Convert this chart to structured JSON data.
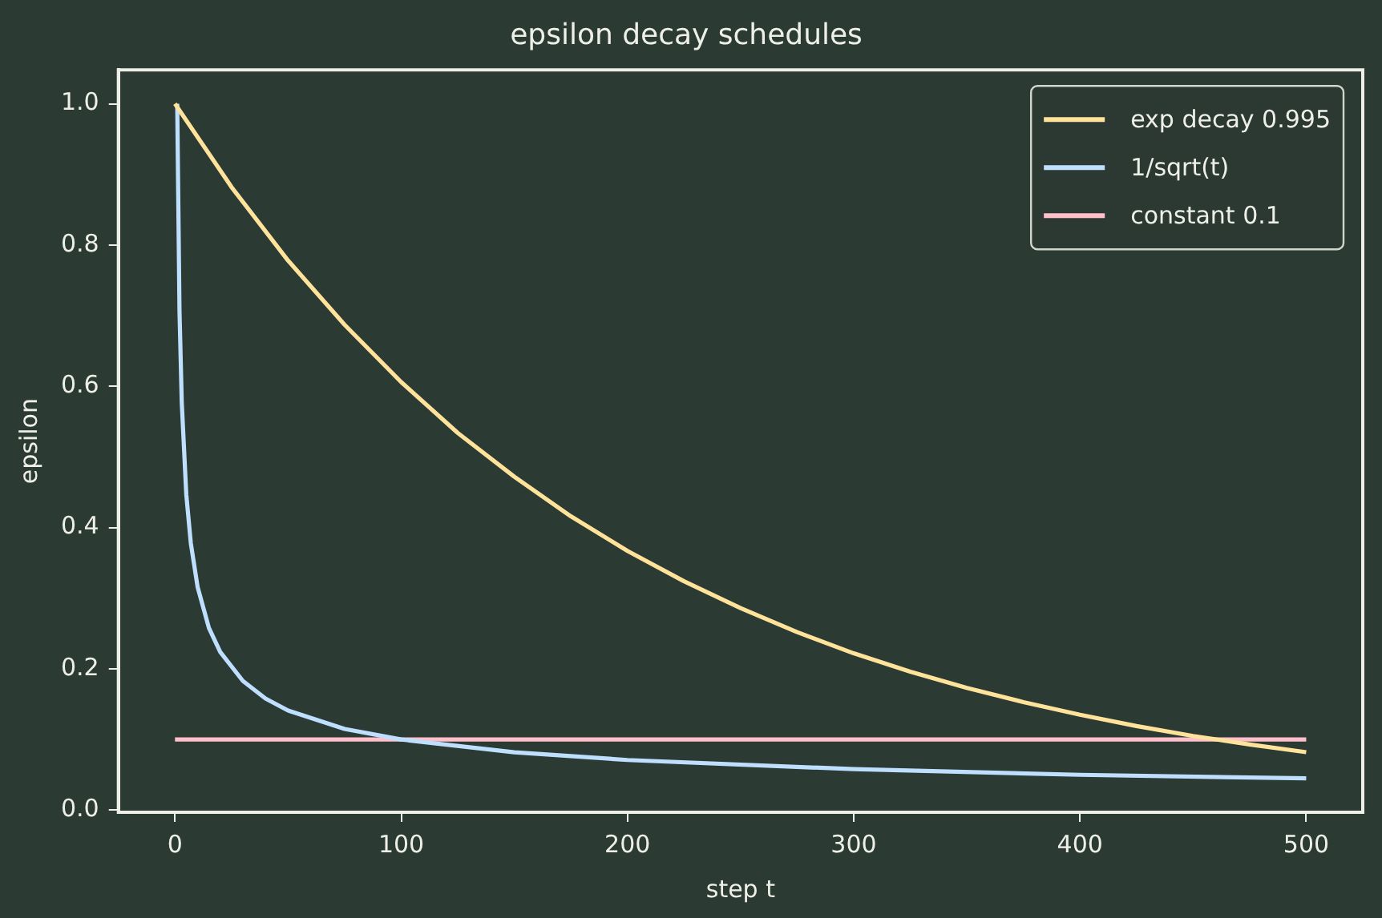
{
  "chart_data": {
    "type": "line",
    "title": "epsilon decay schedules",
    "xlabel": "step t",
    "ylabel": "epsilon",
    "xlim": [
      -25,
      525
    ],
    "xticks": [
      0,
      100,
      200,
      300,
      400,
      500
    ],
    "ylim": [
      -0.003,
      1.048
    ],
    "yticks": [
      {
        "value": 0,
        "label": "0.0"
      },
      {
        "value": 0.2,
        "label": "0.2"
      },
      {
        "value": 0.4,
        "label": "0.4"
      },
      {
        "value": 0.6,
        "label": "0.6"
      },
      {
        "value": 0.8,
        "label": "0.8"
      },
      {
        "value": 1,
        "label": "1.0"
      }
    ],
    "grid": false,
    "legend": "top right",
    "marker": "none",
    "line_style": "solid",
    "series": [
      {
        "name": "exp decay 0.995",
        "color": "#ffe39a",
        "x": [
          0,
          25,
          50,
          75,
          100,
          125,
          150,
          175,
          200,
          225,
          250,
          275,
          300,
          325,
          350,
          375,
          400,
          425,
          450,
          475,
          500
        ],
        "values": [
          1,
          0.882,
          0.778,
          0.687,
          0.606,
          0.534,
          0.472,
          0.416,
          0.367,
          0.324,
          0.286,
          0.252,
          0.222,
          0.196,
          0.173,
          0.153,
          0.135,
          0.119,
          0.105,
          0.093,
          0.082
        ]
      },
      {
        "name": "1/sqrt(t)",
        "color": "#bfdfff",
        "x": [
          1,
          2,
          3,
          5,
          7,
          10,
          15,
          20,
          30,
          40,
          50,
          75,
          100,
          150,
          200,
          300,
          400,
          500
        ],
        "values": [
          1,
          0.707,
          0.577,
          0.447,
          0.378,
          0.316,
          0.258,
          0.224,
          0.183,
          0.158,
          0.141,
          0.115,
          0.1,
          0.082,
          0.071,
          0.058,
          0.05,
          0.045
        ]
      },
      {
        "name": "constant 0.1",
        "color": "#ffc0cb",
        "x": [
          0,
          500
        ],
        "values": [
          0.1,
          0.1
        ]
      }
    ]
  }
}
